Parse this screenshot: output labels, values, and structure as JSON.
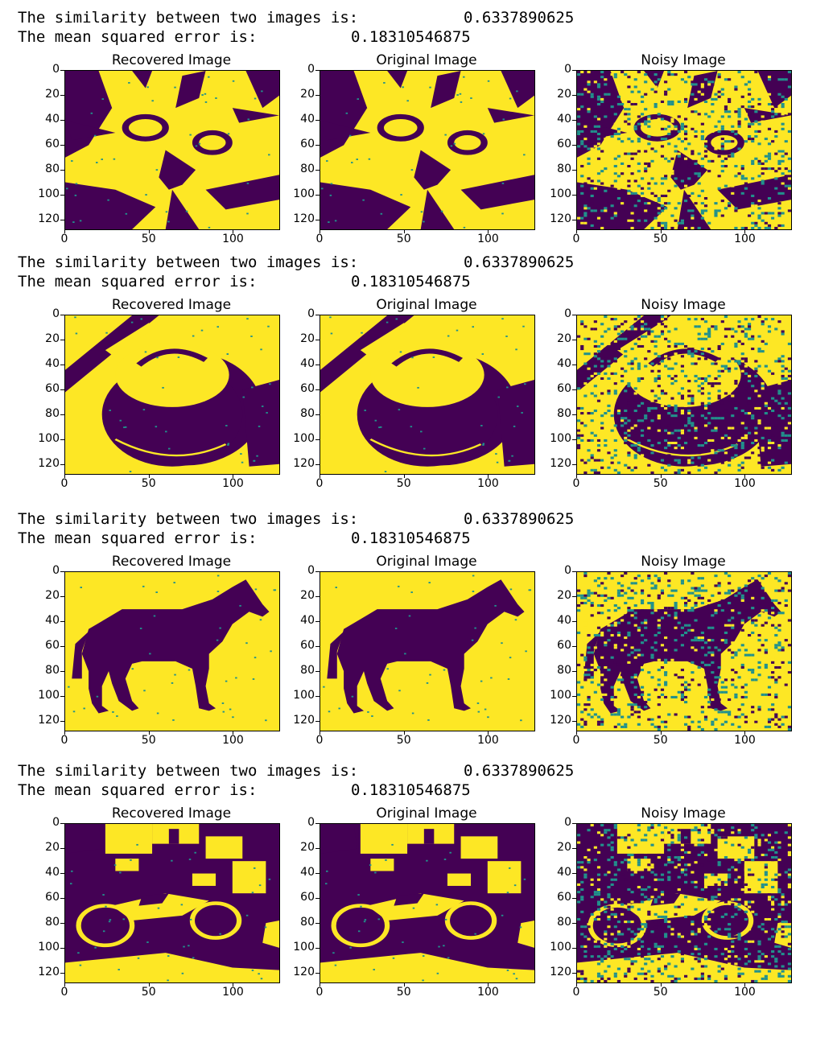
{
  "colors": {
    "dark": "#440154",
    "yellow": "#fde725",
    "teal": "#21918c"
  },
  "axes": {
    "y_ticks": [
      "0",
      "20",
      "40",
      "60",
      "80",
      "100",
      "120"
    ],
    "x_ticks": [
      "0",
      "50",
      "100"
    ]
  },
  "rows": [
    {
      "similarity_label": "The similarity between two images is:",
      "similarity_value": "0.6337890625",
      "mse_label": "The mean squared error is:",
      "mse_value": "0.18310546875",
      "subject": "cat",
      "panels": [
        {
          "title": "Recovered Image",
          "kind": "clean",
          "image_icon": "cat-image"
        },
        {
          "title": "Original Image",
          "kind": "clean",
          "image_icon": "cat-image"
        },
        {
          "title": "Noisy Image",
          "kind": "noisy",
          "image_icon": "cat-image"
        }
      ]
    },
    {
      "similarity_label": "The similarity between two images is:",
      "similarity_value": "0.6337890625",
      "mse_label": "The mean squared error is:",
      "mse_value": "0.18310546875",
      "subject": "pot",
      "panels": [
        {
          "title": "Recovered Image",
          "kind": "clean",
          "image_icon": "pot-image"
        },
        {
          "title": "Original Image",
          "kind": "clean",
          "image_icon": "pot-image"
        },
        {
          "title": "Noisy Image",
          "kind": "noisy",
          "image_icon": "pot-image"
        }
      ]
    },
    {
      "similarity_label": "The similarity between two images is:",
      "similarity_value": "0.6337890625",
      "mse_label": "The mean squared error is:",
      "mse_value": "0.18310546875",
      "subject": "horse",
      "panels": [
        {
          "title": "Recovered Image",
          "kind": "clean",
          "image_icon": "horse-image"
        },
        {
          "title": "Original Image",
          "kind": "clean",
          "image_icon": "horse-image"
        },
        {
          "title": "Noisy Image",
          "kind": "noisy",
          "image_icon": "horse-image"
        }
      ]
    },
    {
      "similarity_label": "The similarity between two images is:",
      "similarity_value": "0.6337890625",
      "mse_label": "The mean squared error is:",
      "mse_value": "0.18310546875",
      "subject": "motorcycle",
      "panels": [
        {
          "title": "Recovered Image",
          "kind": "clean",
          "image_icon": "motorcycle-image"
        },
        {
          "title": "Original Image",
          "kind": "clean",
          "image_icon": "motorcycle-image"
        },
        {
          "title": "Noisy Image",
          "kind": "noisy",
          "image_icon": "motorcycle-image"
        }
      ]
    }
  ]
}
